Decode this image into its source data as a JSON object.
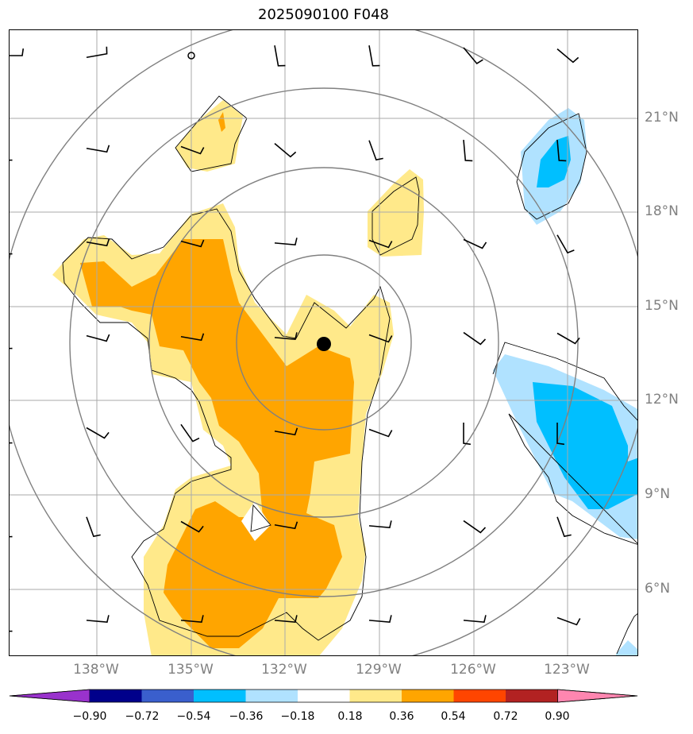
{
  "title": "2025090100 F048",
  "lat_labels": [
    "21°N",
    "18°N",
    "15°N",
    "12°N",
    "9°N",
    "6°N"
  ],
  "lon_labels": [
    "138°W",
    "135°W",
    "132°W",
    "129°W",
    "126°W",
    "123°W"
  ],
  "colorbar": {
    "tick_labels": [
      "−0.90",
      "−0.72",
      "−0.54",
      "−0.36",
      "−0.18",
      "0.18",
      "0.36",
      "0.54",
      "0.72",
      "0.90"
    ],
    "colors": [
      "#9932cc",
      "#00008b",
      "#3a5fcd",
      "#00bfff",
      "#b0e2ff",
      "#ffffff",
      "#ffe98a",
      "#ffa500",
      "#ff4500",
      "#b22222",
      "#ff86b0"
    ]
  },
  "colors": {
    "positive_light": "#ffe98a",
    "positive_mid": "#ffa500",
    "negative_light": "#b0e2ff",
    "negative_mid": "#00bfff",
    "grid": "#aaaaaa",
    "range_rings": "#808080",
    "center_marker": "#000000"
  },
  "icons": {
    "center_marker": "storm-center-dot",
    "wind_barb": "wind-barb",
    "calm_wind": "calm-circle"
  }
}
